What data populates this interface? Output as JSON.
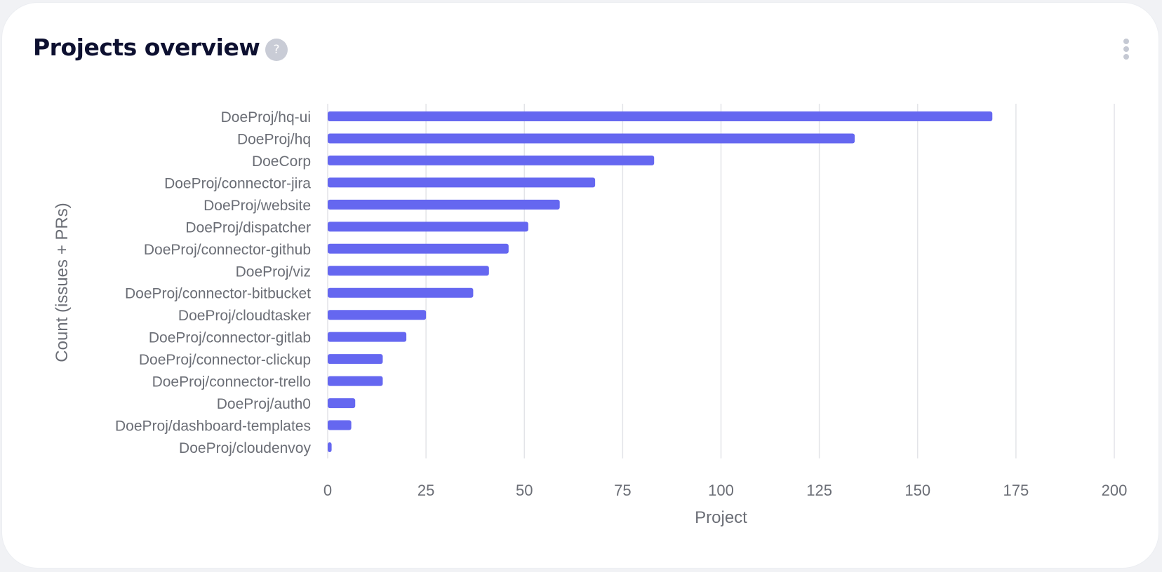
{
  "header": {
    "title": "Projects overview",
    "help_glyph": "?",
    "help_icon": "question-circle-icon",
    "menu_icon": "kebab-menu-icon"
  },
  "chart_data": {
    "type": "bar",
    "orientation": "horizontal",
    "categories": [
      "DoeProj/hq-ui",
      "DoeProj/hq",
      "DoeCorp",
      "DoeProj/connector-jira",
      "DoeProj/website",
      "DoeProj/dispatcher",
      "DoeProj/connector-github",
      "DoeProj/viz",
      "DoeProj/connector-bitbucket",
      "DoeProj/cloudtasker",
      "DoeProj/connector-gitlab",
      "DoeProj/connector-clickup",
      "DoeProj/connector-trello",
      "DoeProj/auth0",
      "DoeProj/dashboard-templates",
      "DoeProj/cloudenvoy"
    ],
    "values": [
      169,
      134,
      83,
      68,
      59,
      51,
      46,
      41,
      37,
      25,
      20,
      14,
      14,
      7,
      6,
      1
    ],
    "xlabel": "Project",
    "ylabel": "Count (issues + PRs)",
    "xlim": [
      0,
      200
    ],
    "xticks": [
      0,
      25,
      50,
      75,
      100,
      125,
      150,
      175,
      200
    ],
    "grid": "vertical",
    "bar_color": "#6567f0",
    "grid_color": "#e3e4e8",
    "legend": "none"
  }
}
